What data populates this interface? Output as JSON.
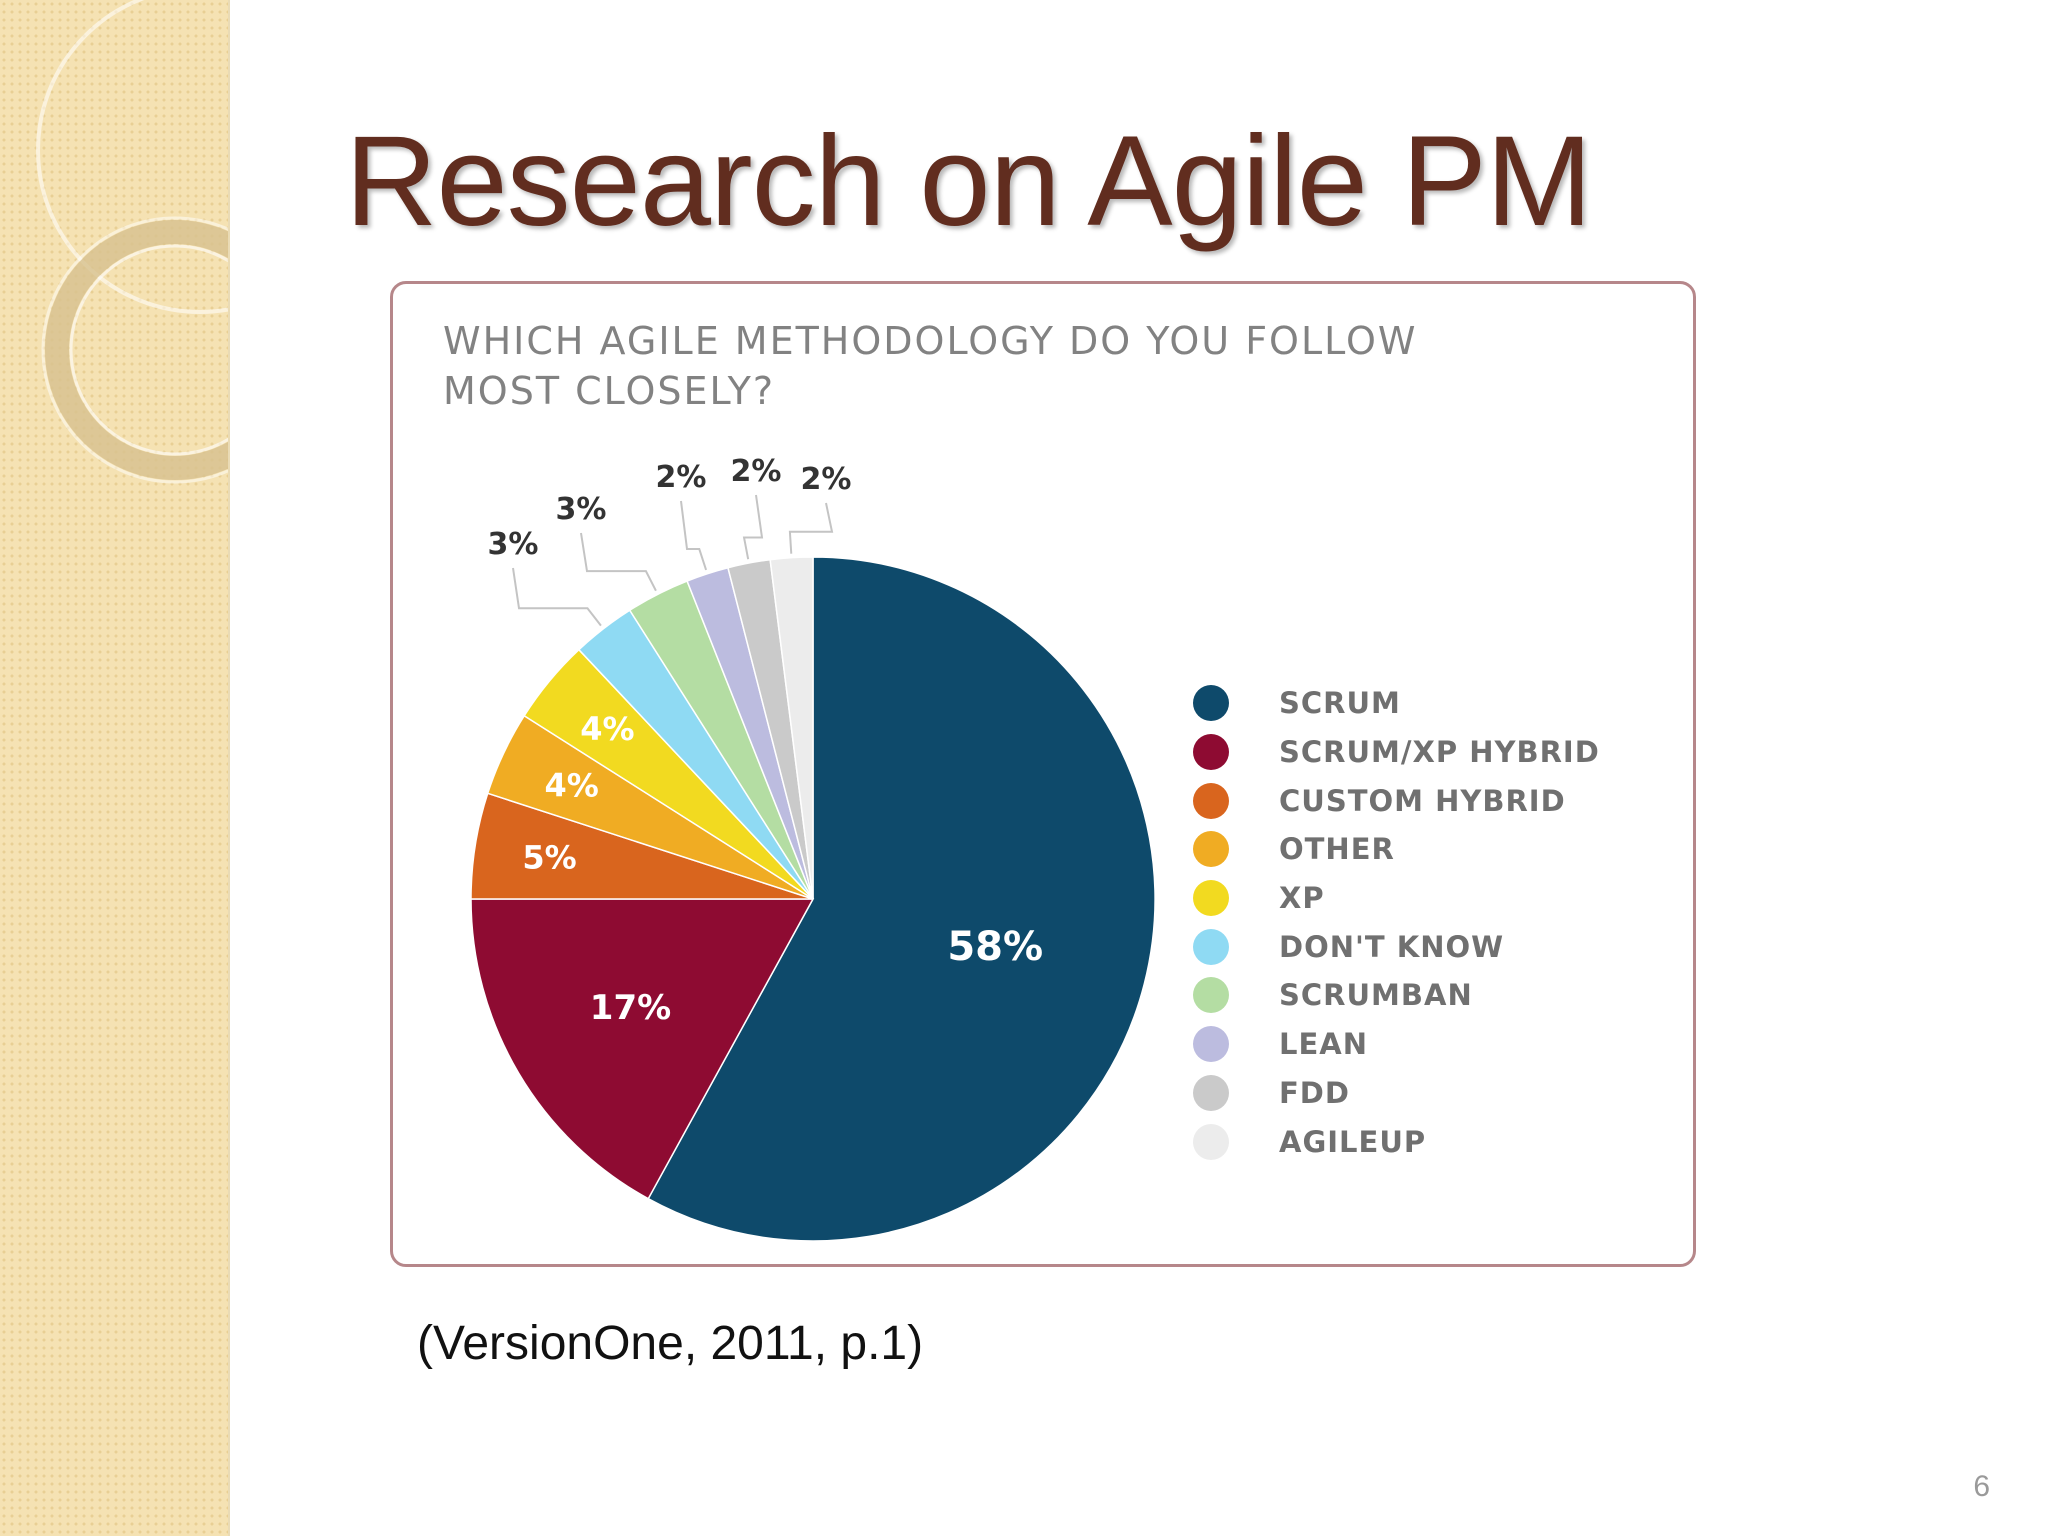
{
  "slide": {
    "title": "Research on Agile PM",
    "source": "(VersionOne, 2011, p.1)",
    "page_number": "6"
  },
  "colors": {
    "title": "#612d1f",
    "frame_border": "#b6878a",
    "sidebar": "#f5e2b3"
  },
  "chart_data": {
    "type": "pie",
    "title": "WHICH AGILE METHODOLOGY DO YOU FOLLOW\nMOST CLOSELY?",
    "legend_position": "right",
    "slices": [
      {
        "label": "SCRUM",
        "value": 58,
        "display": "58%",
        "color": "#0e4a6b"
      },
      {
        "label": "SCRUM/XP HYBRID",
        "value": 17,
        "display": "17%",
        "color": "#8e0b32"
      },
      {
        "label": "CUSTOM HYBRID",
        "value": 5,
        "display": "5%",
        "color": "#d9651e"
      },
      {
        "label": "OTHER",
        "value": 4,
        "display": "4%",
        "color": "#f0ac23"
      },
      {
        "label": "XP",
        "value": 4,
        "display": "4%",
        "color": "#f2da20"
      },
      {
        "label": "DON'T KNOW",
        "value": 3,
        "display": "3%",
        "color": "#8fdaf3"
      },
      {
        "label": "SCRUMBAN",
        "value": 3,
        "display": "3%",
        "color": "#b4dda3"
      },
      {
        "label": "LEAN",
        "value": 2,
        "display": "2%",
        "color": "#bcbcdf"
      },
      {
        "label": "FDD",
        "value": 2,
        "display": "2%",
        "color": "#cacaca"
      },
      {
        "label": "AGILEUP",
        "value": 2,
        "display": "2%",
        "color": "#ececec"
      }
    ]
  }
}
